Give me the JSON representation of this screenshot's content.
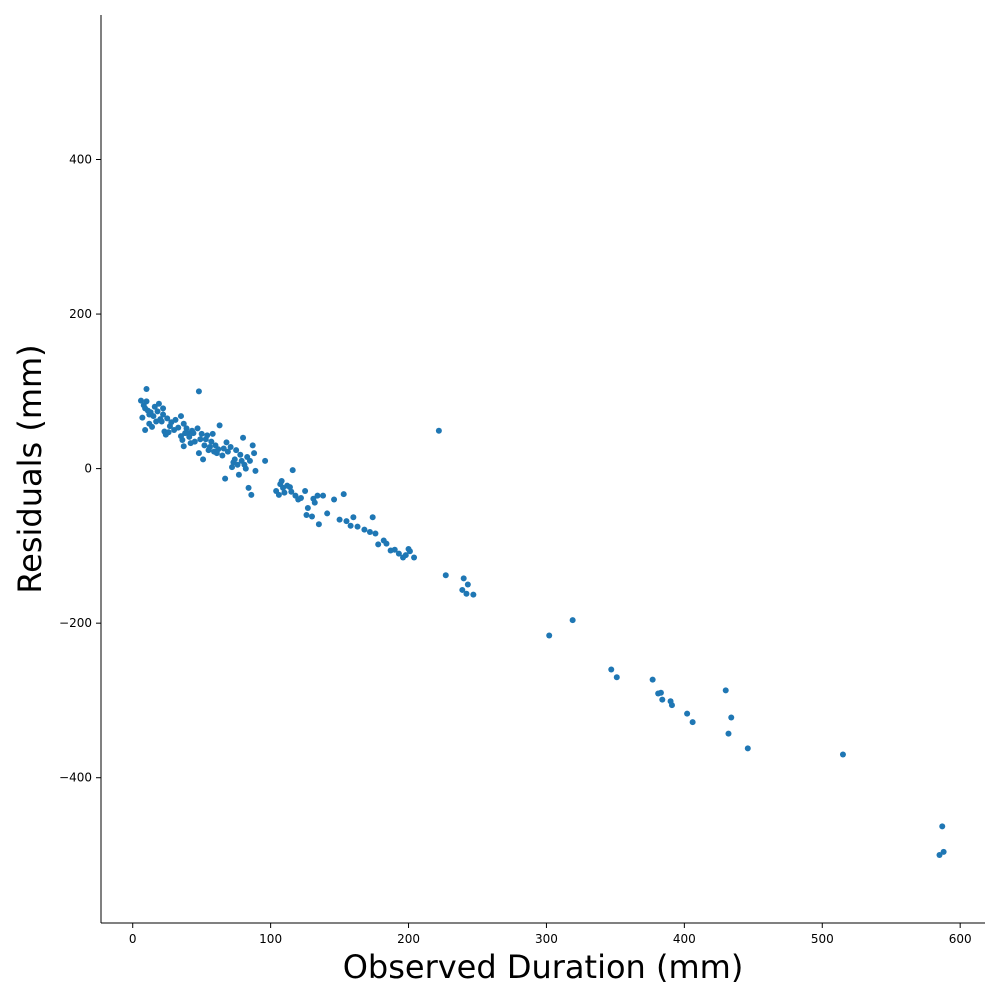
{
  "chart_data": {
    "type": "scatter",
    "title": "",
    "xlabel": "Observed Duration (mm)",
    "ylabel": "Residuals (mm)",
    "xlim": [
      -23,
      618
    ],
    "ylim": [
      -588,
      587
    ],
    "xticks": [
      0,
      100,
      200,
      300,
      400,
      500,
      600
    ],
    "yticks": [
      -400,
      -200,
      0,
      200,
      400
    ],
    "grid": false,
    "legend": "none",
    "marker_color": "#1f77b4",
    "spines": [
      "left",
      "bottom"
    ],
    "series": [
      {
        "points": [
          [
            6,
            88
          ],
          [
            7,
            66
          ],
          [
            8,
            82
          ],
          [
            9,
            78
          ],
          [
            9,
            50
          ],
          [
            10,
            103
          ],
          [
            10,
            87
          ],
          [
            11,
            75
          ],
          [
            12,
            70
          ],
          [
            12,
            58
          ],
          [
            13,
            73
          ],
          [
            14,
            54
          ],
          [
            15,
            68
          ],
          [
            16,
            80
          ],
          [
            17,
            61
          ],
          [
            18,
            74
          ],
          [
            19,
            84
          ],
          [
            20,
            64
          ],
          [
            21,
            61
          ],
          [
            22,
            78
          ],
          [
            22,
            70
          ],
          [
            23,
            48
          ],
          [
            24,
            44
          ],
          [
            25,
            65
          ],
          [
            26,
            47
          ],
          [
            27,
            55
          ],
          [
            28,
            60
          ],
          [
            30,
            50
          ],
          [
            31,
            63
          ],
          [
            33,
            53
          ],
          [
            35,
            68
          ],
          [
            35,
            42
          ],
          [
            36,
            37
          ],
          [
            37,
            58
          ],
          [
            37,
            29
          ],
          [
            38,
            46
          ],
          [
            39,
            52
          ],
          [
            40,
            46
          ],
          [
            41,
            41
          ],
          [
            42,
            33
          ],
          [
            43,
            49
          ],
          [
            44,
            46
          ],
          [
            45,
            35
          ],
          [
            47,
            52
          ],
          [
            48,
            100
          ],
          [
            48,
            20
          ],
          [
            49,
            38
          ],
          [
            50,
            45
          ],
          [
            51,
            12
          ],
          [
            52,
            30
          ],
          [
            53,
            38
          ],
          [
            54,
            43
          ],
          [
            55,
            24
          ],
          [
            56,
            28
          ],
          [
            57,
            35
          ],
          [
            58,
            45
          ],
          [
            59,
            22
          ],
          [
            60,
            30
          ],
          [
            61,
            20
          ],
          [
            62,
            25
          ],
          [
            63,
            56
          ],
          [
            65,
            17
          ],
          [
            66,
            26
          ],
          [
            67,
            -13
          ],
          [
            68,
            34
          ],
          [
            69,
            22
          ],
          [
            71,
            28
          ],
          [
            72,
            2
          ],
          [
            73,
            8
          ],
          [
            74,
            12
          ],
          [
            75,
            24
          ],
          [
            76,
            5
          ],
          [
            77,
            -8
          ],
          [
            78,
            18
          ],
          [
            79,
            10
          ],
          [
            80,
            40
          ],
          [
            81,
            5
          ],
          [
            82,
            0
          ],
          [
            83,
            15
          ],
          [
            84,
            -25
          ],
          [
            85,
            10
          ],
          [
            86,
            -34
          ],
          [
            87,
            30
          ],
          [
            88,
            20
          ],
          [
            89,
            -3
          ],
          [
            96,
            10
          ],
          [
            104,
            -29
          ],
          [
            106,
            -34
          ],
          [
            107,
            -20
          ],
          [
            108,
            -16
          ],
          [
            109,
            -25
          ],
          [
            110,
            -31
          ],
          [
            112,
            -22
          ],
          [
            114,
            -24
          ],
          [
            115,
            -30
          ],
          [
            116,
            -2
          ],
          [
            118,
            -35
          ],
          [
            120,
            -40
          ],
          [
            122,
            -38
          ],
          [
            125,
            -29
          ],
          [
            126,
            -60
          ],
          [
            127,
            -51
          ],
          [
            130,
            -62
          ],
          [
            131,
            -39
          ],
          [
            132,
            -44
          ],
          [
            134,
            -35
          ],
          [
            135,
            -72
          ],
          [
            138,
            -35
          ],
          [
            141,
            -58
          ],
          [
            146,
            -40
          ],
          [
            150,
            -66
          ],
          [
            153,
            -33
          ],
          [
            155,
            -68
          ],
          [
            158,
            -74
          ],
          [
            160,
            -63
          ],
          [
            163,
            -75
          ],
          [
            168,
            -79
          ],
          [
            172,
            -82
          ],
          [
            174,
            -63
          ],
          [
            176,
            -84
          ],
          [
            178,
            -98
          ],
          [
            182,
            -93
          ],
          [
            184,
            -97
          ],
          [
            187,
            -106
          ],
          [
            190,
            -105
          ],
          [
            193,
            -110
          ],
          [
            196,
            -115
          ],
          [
            198,
            -112
          ],
          [
            200,
            -104
          ],
          [
            201,
            -107
          ],
          [
            204,
            -115
          ],
          [
            222,
            49
          ],
          [
            227,
            -138
          ],
          [
            239,
            -157
          ],
          [
            240,
            -142
          ],
          [
            242,
            -162
          ],
          [
            243,
            -150
          ],
          [
            247,
            -163
          ],
          [
            302,
            -216
          ],
          [
            319,
            -196
          ],
          [
            347,
            -260
          ],
          [
            351,
            -270
          ],
          [
            377,
            -273
          ],
          [
            381,
            -291
          ],
          [
            383,
            -290
          ],
          [
            384,
            -299
          ],
          [
            390,
            -301
          ],
          [
            391,
            -306
          ],
          [
            402,
            -317
          ],
          [
            406,
            -328
          ],
          [
            430,
            -287
          ],
          [
            432,
            -343
          ],
          [
            434,
            -322
          ],
          [
            446,
            -362
          ],
          [
            515,
            -370
          ],
          [
            585,
            -500
          ],
          [
            587,
            -463
          ],
          [
            588,
            -496
          ]
        ]
      }
    ]
  }
}
